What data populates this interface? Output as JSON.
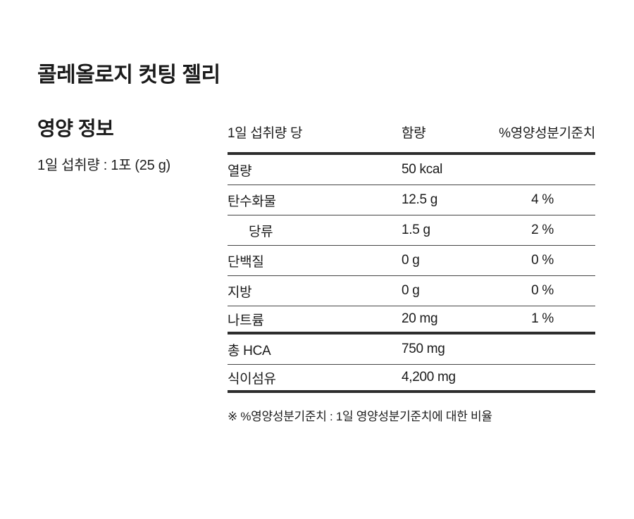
{
  "page": {
    "product_title": "콜레올로지 컷팅 젤리",
    "section_title": "영양 정보",
    "serving_info": "1일 섭취량 : 1포 (25 g)"
  },
  "table": {
    "headers": [
      "1일 섭취량 당",
      "함량",
      "%영양성분기준치"
    ],
    "rows": [
      {
        "label": "열량",
        "amount": "50 kcal",
        "dv": ""
      },
      {
        "label": "탄수화물",
        "amount": "12.5 g",
        "dv": "4 %"
      },
      {
        "label": "당류",
        "amount": "1.5 g",
        "dv": "2 %"
      },
      {
        "label": "단백질",
        "amount": "0 g",
        "dv": "0 %"
      },
      {
        "label": "지방",
        "amount": "0 g",
        "dv": "0 %"
      },
      {
        "label": "나트륨",
        "amount": "20 mg",
        "dv": "1 %"
      },
      {
        "label": "총 HCA",
        "amount": "750 mg",
        "dv": ""
      },
      {
        "label": "식이섬유",
        "amount": "4,200 mg",
        "dv": ""
      }
    ],
    "footnote": "※ %영양성분기준치 : 1일 영양성분기준치에 대한 비율"
  },
  "colors": {
    "background": "#ffffff",
    "text": "#1a1a1a",
    "rule_thick": "#2d2d2d",
    "rule_thin": "#444444"
  }
}
